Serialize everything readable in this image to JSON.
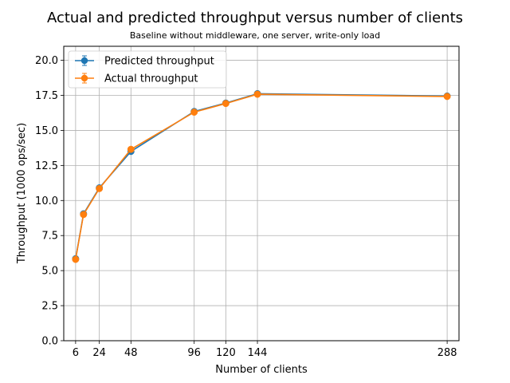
{
  "chart_data": {
    "type": "line",
    "title": "Actual and predicted throughput versus number of clients",
    "subtitle": "Baseline without middleware, one server, write-only load",
    "xlabel": "Number of clients",
    "ylabel": "Throughput (1000 ops/sec)",
    "x": [
      6,
      12,
      24,
      48,
      96,
      120,
      144,
      288
    ],
    "x_ticks": [
      6,
      24,
      48,
      96,
      120,
      144,
      288
    ],
    "x_tick_labels": [
      "6",
      "24",
      "48",
      "96",
      "120",
      "144",
      "288"
    ],
    "xlim": [
      -3,
      297
    ],
    "ylim": [
      0,
      21
    ],
    "y_ticks": [
      0.0,
      2.5,
      5.0,
      7.5,
      10.0,
      12.5,
      15.0,
      17.5,
      20.0
    ],
    "y_tick_labels": [
      "0.0",
      "2.5",
      "5.0",
      "7.5",
      "10.0",
      "12.5",
      "15.0",
      "17.5",
      "20.0"
    ],
    "grid": true,
    "legend_position": "top-left",
    "series": [
      {
        "name": "Predicted throughput",
        "color": "#1f77b4",
        "values": [
          5.85,
          9.05,
          10.9,
          13.5,
          16.35,
          16.95,
          17.62,
          17.45
        ]
      },
      {
        "name": "Actual throughput",
        "color": "#ff7f0e",
        "values": [
          5.8,
          9.0,
          10.85,
          13.65,
          16.3,
          16.92,
          17.58,
          17.42
        ]
      }
    ]
  }
}
